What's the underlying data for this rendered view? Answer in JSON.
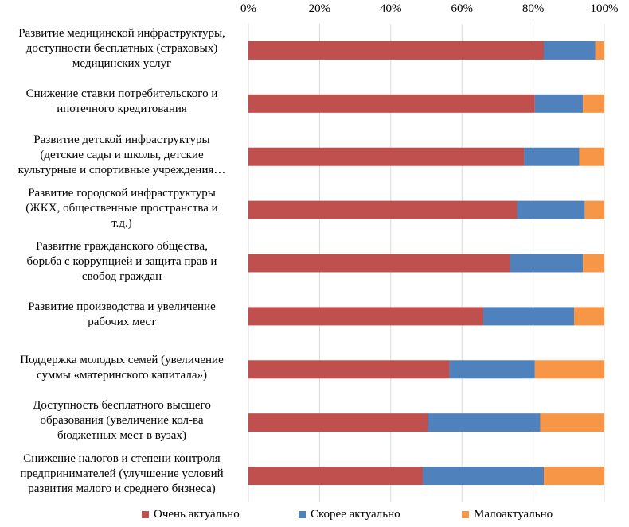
{
  "chart_data": {
    "type": "bar",
    "orientation": "horizontal",
    "stacked": "percent",
    "categories": [
      "Развитие медицинской инфраструктуры, доступности бесплатных (страховых) медицинских услуг",
      "Снижение ставки потребительского и ипотечного кредитования",
      "Развитие детской инфраструктуры (детские сады и школы, детские культурные  и спортивные учреждения…",
      "Развитие городской инфраструктуры (ЖКХ, общественные пространства и т.д.)",
      "Развитие гражданского общества, борьба с коррупцией  и защита прав и свобод граждан",
      "Развитие производства и увеличение рабочих мест",
      "Поддержка молодых семей (увеличение суммы «материнского капитала»)",
      "Доступность бесплатного высшего образования (увеличение  кол-ва бюджетных мест в вузах)",
      "Снижение налогов и степени контроля предпринимателей (улучшение  условий развития малого и среднего бизнеса)"
    ],
    "category_lines": [
      [
        "Развитие медицинской инфраструктуры,",
        "доступности бесплатных (страховых)",
        "медицинских услуг"
      ],
      [
        "Снижение ставки потребительского и",
        "ипотечного кредитования"
      ],
      [
        "Развитие детской инфраструктуры",
        "(детские сады и школы, детские",
        "культурные  и спортивные учреждения…"
      ],
      [
        "Развитие городской инфраструктуры",
        "(ЖКХ, общественные пространства и",
        "т.д.)"
      ],
      [
        "Развитие гражданского общества,",
        "борьба с коррупцией  и защита прав и",
        "свобод граждан"
      ],
      [
        "Развитие производства и увеличение",
        "рабочих мест"
      ],
      [
        "Поддержка молодых семей (увеличение",
        "суммы «материнского капитала»)"
      ],
      [
        "Доступность бесплатного высшего",
        "образования (увеличение  кол-ва",
        "бюджетных мест в вузах)"
      ],
      [
        "Снижение налогов и степени контроля",
        "предпринимателей (улучшение  условий",
        "развития малого и среднего бизнеса)"
      ]
    ],
    "series": [
      {
        "name": "Очень актуально",
        "color": "#c0504d",
        "values": [
          83,
          80.5,
          77.5,
          75.5,
          73.5,
          66,
          56.5,
          50.5,
          49
        ]
      },
      {
        "name": "Скорее актуально",
        "color": "#4f81bd",
        "values": [
          14.5,
          13.5,
          15.5,
          19,
          20.5,
          25.5,
          24,
          31.5,
          34
        ]
      },
      {
        "name": "Малоактуально",
        "color": "#f79646",
        "values": [
          2.5,
          6,
          7,
          5.5,
          6,
          8.5,
          19.5,
          18,
          17
        ]
      }
    ],
    "x_ticks": [
      "0%",
      "20%",
      "40%",
      "60%",
      "80%",
      "100%"
    ],
    "xlim": [
      0,
      100
    ],
    "grid": true,
    "legend_position": "bottom"
  }
}
